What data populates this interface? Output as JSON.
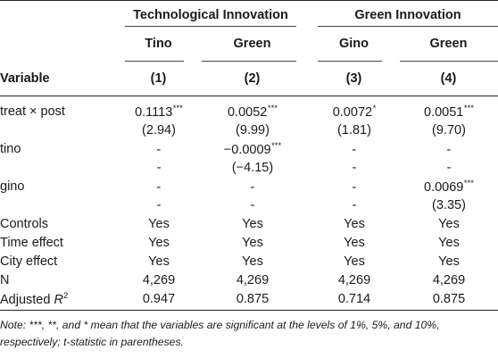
{
  "groups": {
    "tech": "Technological Innovation",
    "green": "Green Innovation"
  },
  "dep_vars": [
    "Tino",
    "Green",
    "Gino",
    "Green"
  ],
  "header": {
    "variable": "Variable",
    "col_numbers": [
      "(1)",
      "(2)",
      "(3)",
      "(4)"
    ]
  },
  "rows": {
    "treat_post": {
      "label": "treat × post",
      "coef": [
        "0.1113",
        "0.0052",
        "0.0072",
        "0.0051"
      ],
      "stars": [
        "***",
        "***",
        "*",
        "***"
      ],
      "tstat": [
        "(2.94)",
        "(9.99)",
        "(1.81)",
        "(9.70)"
      ]
    },
    "tino": {
      "label": "tino",
      "coef": [
        "-",
        "−0.0009",
        "-",
        "-"
      ],
      "stars": [
        "",
        "***",
        "",
        ""
      ],
      "tstat": [
        "-",
        "(−4.15)",
        "-",
        "-"
      ]
    },
    "gino": {
      "label": "gino",
      "coef": [
        "-",
        "-",
        "-",
        "0.0069"
      ],
      "stars": [
        "",
        "",
        "",
        "***"
      ],
      "tstat": [
        "-",
        "-",
        "-",
        "(3.35)"
      ]
    },
    "controls": {
      "label": "Controls",
      "values": [
        "Yes",
        "Yes",
        "Yes",
        "Yes"
      ]
    },
    "time": {
      "label": "Time effect",
      "values": [
        "Yes",
        "Yes",
        "Yes",
        "Yes"
      ]
    },
    "city": {
      "label": "City effect",
      "values": [
        "Yes",
        "Yes",
        "Yes",
        "Yes"
      ]
    },
    "n": {
      "label": "N",
      "values": [
        "4,269",
        "4,269",
        "4,269",
        "4,269"
      ]
    },
    "adj_r2": {
      "label": "Adjusted ",
      "label_italic": "R",
      "label_sup": "2",
      "values": [
        "0.947",
        "0.875",
        "0.714",
        "0.875"
      ]
    }
  },
  "note": {
    "line1": "Note: ***, **, and * mean that the variables are significant at the levels of 1%, 5%, and 10%,",
    "line2": "respectively; t-statistic in parentheses."
  }
}
